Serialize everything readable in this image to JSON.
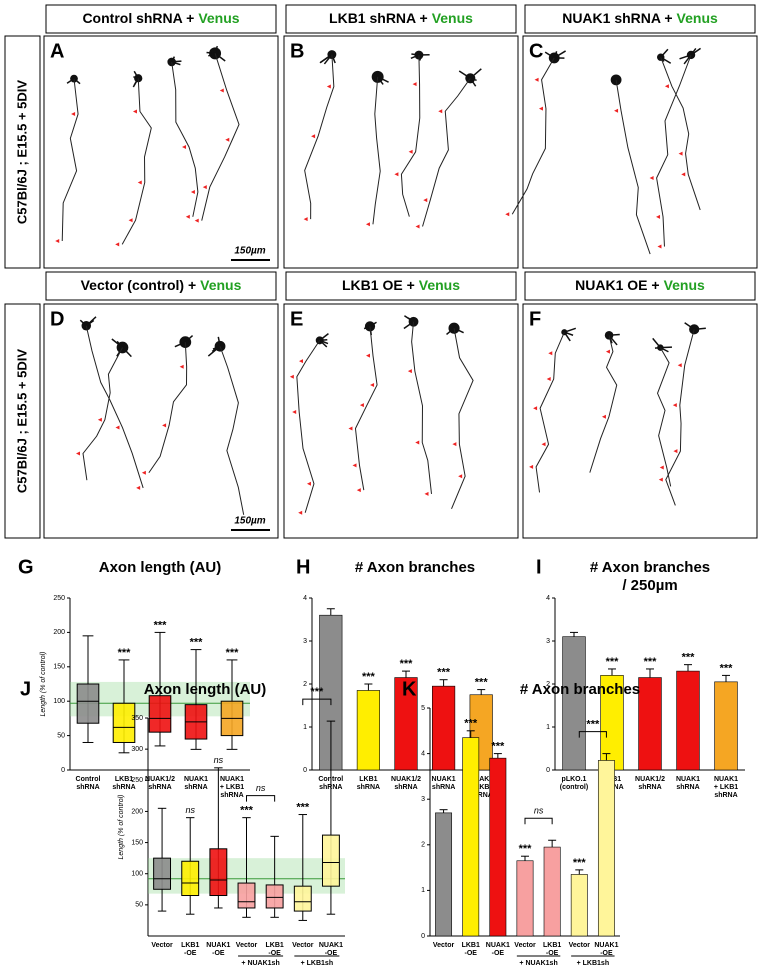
{
  "figure": {
    "row_label": "C57Bl/6J ; E15.5 + 5DIV",
    "scale_bar": "150µm",
    "panels": [
      {
        "label": "A",
        "title": "Control shRNA +",
        "highlight": "Venus"
      },
      {
        "label": "B",
        "title": "LKB1 shRNA +",
        "highlight": "Venus"
      },
      {
        "label": "C",
        "title": "NUAK1 shRNA +",
        "highlight": "Venus"
      },
      {
        "label": "D",
        "title": "Vector (control) +",
        "highlight": "Venus"
      },
      {
        "label": "E",
        "title": "LKB1 OE +",
        "highlight": "Venus"
      },
      {
        "label": "F",
        "title": "NUAK1 OE +",
        "highlight": "Venus"
      }
    ]
  },
  "chart_data": [
    {
      "type": "box",
      "panel_label": "G",
      "title": [
        "Axon length (AU)"
      ],
      "ylabel": "Length (% of control)",
      "categories": [
        [
          "Control",
          "shRNA"
        ],
        [
          "LKB1",
          "shRNA"
        ],
        [
          "NUAK1/2",
          "shRNA"
        ],
        [
          "NUAK1",
          "shRNA"
        ],
        [
          "NUAK1",
          "+ LKB1",
          "shRNA"
        ]
      ],
      "colors": [
        "#8c8c8c",
        "#ffee00",
        "#ee1111",
        "#ee1111",
        "#f5a623"
      ],
      "whisker_low": [
        40,
        25,
        35,
        30,
        30
      ],
      "q1": [
        68,
        40,
        55,
        45,
        50
      ],
      "median": [
        100,
        62,
        75,
        70,
        75
      ],
      "q3": [
        125,
        97,
        108,
        95,
        100
      ],
      "whisker_high": [
        195,
        160,
        200,
        175,
        160
      ],
      "annotations": [
        null,
        "***",
        "***",
        "***",
        "***"
      ],
      "reference_band": [
        78,
        128
      ],
      "reference_line": 97,
      "reference_color": "#8fd68f",
      "ylim": [
        0,
        250
      ],
      "yticks": [
        0,
        50,
        100,
        150,
        200,
        250
      ]
    },
    {
      "type": "bar",
      "panel_label": "H",
      "title": [
        "# Axon branches"
      ],
      "categories": [
        [
          "Control",
          "shRNA"
        ],
        [
          "LKB1",
          "shRNA"
        ],
        [
          "NUAK1/2",
          "shRNA"
        ],
        [
          "NUAK1",
          "shRNA"
        ],
        [
          "NUAK1",
          "+ LKB1",
          "shRNA"
        ]
      ],
      "colors": [
        "#8c8c8c",
        "#ffee00",
        "#ee1111",
        "#ee1111",
        "#f5a623"
      ],
      "values": [
        3.6,
        1.85,
        2.15,
        1.95,
        1.75
      ],
      "errors": [
        0.15,
        0.15,
        0.15,
        0.15,
        0.12
      ],
      "annotations": [
        null,
        "***",
        "***",
        "***",
        "***"
      ],
      "ylim": [
        0,
        4
      ],
      "yticks": [
        0,
        1,
        2,
        3,
        4
      ]
    },
    {
      "type": "bar",
      "panel_label": "I",
      "title": [
        "# Axon branches",
        "/ 250µm"
      ],
      "categories": [
        [
          "pLKO.1",
          "(control)"
        ],
        [
          "LKB1",
          "shRNA"
        ],
        [
          "NUAK1/2",
          "shRNA"
        ],
        [
          "NUAK1",
          "shRNA"
        ],
        [
          "NUAK1",
          "+ LKB1",
          "shRNA"
        ]
      ],
      "colors": [
        "#8c8c8c",
        "#ffee00",
        "#ee1111",
        "#ee1111",
        "#f5a623"
      ],
      "values": [
        3.1,
        2.2,
        2.15,
        2.3,
        2.05
      ],
      "errors": [
        0.1,
        0.15,
        0.2,
        0.15,
        0.15
      ],
      "annotations": [
        null,
        "***",
        "***",
        "***",
        "***"
      ],
      "ylim": [
        0,
        4
      ],
      "yticks": [
        0,
        1,
        2,
        3,
        4
      ]
    },
    {
      "type": "box",
      "panel_label": "J",
      "title": [
        "Axon length (AU)"
      ],
      "ylabel": "Length (% of control)",
      "categories": [
        [
          "Vector"
        ],
        [
          "LKB1",
          "-OE"
        ],
        [
          "NUAK1",
          "-OE"
        ],
        [
          "Vector"
        ],
        [
          "LKB1",
          "-OE"
        ],
        [
          "Vector"
        ],
        [
          "NUAK1",
          "-OE"
        ]
      ],
      "colors": [
        "#8c8c8c",
        "#ffee00",
        "#ee1111",
        "#f7a0a0",
        "#f7a0a0",
        "#fff59a",
        "#fff59a"
      ],
      "whisker_low": [
        40,
        35,
        45,
        30,
        30,
        25,
        35
      ],
      "q1": [
        75,
        65,
        65,
        45,
        45,
        40,
        80
      ],
      "median": [
        92,
        85,
        90,
        55,
        62,
        55,
        118
      ],
      "q3": [
        125,
        120,
        140,
        85,
        82,
        80,
        162
      ],
      "whisker_high": [
        205,
        190,
        270,
        190,
        160,
        195,
        345
      ],
      "annotations": [
        null,
        "ns",
        "ns",
        "***",
        null,
        "***",
        null
      ],
      "groups": [
        {
          "label": "+ NUAK1sh",
          "from": 3,
          "to": 4
        },
        {
          "label": "+ LKB1sh",
          "from": 5,
          "to": 6
        }
      ],
      "brackets": [
        {
          "label": "ns",
          "from": 3,
          "to": 4
        },
        {
          "label": "***",
          "from": 5,
          "to": 6
        }
      ],
      "reference_band": [
        68,
        125
      ],
      "reference_line": 92,
      "reference_color": "#8fd68f",
      "ylim": [
        0,
        350
      ],
      "yticks": [
        50,
        100,
        150,
        200,
        250,
        300,
        350
      ]
    },
    {
      "type": "bar",
      "panel_label": "K",
      "title": [
        "# Axon branches"
      ],
      "categories": [
        [
          "Vector"
        ],
        [
          "LKB1",
          "-OE"
        ],
        [
          "NUAK1",
          "-OE"
        ],
        [
          "Vector"
        ],
        [
          "LKB1",
          "-OE"
        ],
        [
          "Vector"
        ],
        [
          "NUAK1",
          "-OE"
        ]
      ],
      "colors": [
        "#8c8c8c",
        "#ffee00",
        "#ee1111",
        "#f7a0a0",
        "#f7a0a0",
        "#fff59a",
        "#fff59a"
      ],
      "values": [
        2.7,
        4.35,
        3.9,
        1.65,
        1.95,
        1.35,
        3.85
      ],
      "errors": [
        0.07,
        0.15,
        0.1,
        0.1,
        0.15,
        0.1,
        0.15
      ],
      "annotations": [
        null,
        "***",
        "***",
        "***",
        null,
        "***",
        null
      ],
      "groups": [
        {
          "label": "+ NUAK1sh",
          "from": 3,
          "to": 4
        },
        {
          "label": "+ LKB1sh",
          "from": 5,
          "to": 6
        }
      ],
      "brackets": [
        {
          "label": "ns",
          "from": 3,
          "to": 4
        },
        {
          "label": "***",
          "from": 5,
          "to": 6
        }
      ],
      "ylim": [
        0,
        5
      ],
      "yticks": [
        0,
        1,
        2,
        3,
        4,
        5
      ]
    }
  ]
}
